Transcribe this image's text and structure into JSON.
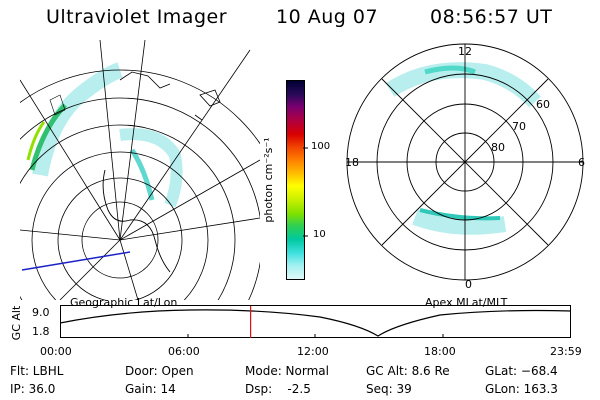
{
  "header": {
    "instrument": "Ultraviolet Imager",
    "date": "10 Aug 07",
    "time": "08:56:57 UT"
  },
  "left_panel": {
    "label": "Geographic Lat/Lon"
  },
  "right_panel": {
    "label": "Apex MLat/MLT",
    "lat_labels": [
      "60",
      "70",
      "80"
    ],
    "mlt_labels": {
      "top": "12",
      "bottom": "0",
      "left": "18",
      "right": "6"
    }
  },
  "colorbar": {
    "unit": "photon cm⁻²s⁻¹",
    "tick_100": "100",
    "tick_10": "10",
    "colors": [
      "#000033",
      "#2a0a5a",
      "#7a0070",
      "#b00040",
      "#d80000",
      "#f04000",
      "#ff8000",
      "#ffc000",
      "#ffff00",
      "#c8f000",
      "#80e000",
      "#30d050",
      "#00c8a0",
      "#40e0e0",
      "#a0f0f0",
      "#e0f8f8"
    ]
  },
  "alt_plot": {
    "ylabel": "GC Alt",
    "ymax": "9.0",
    "ymin": "1.8",
    "xticks": [
      "00:00",
      "06:00",
      "12:00",
      "18:00",
      "23:59"
    ],
    "marker_time_fraction": 0.373
  },
  "footer": {
    "flt": "Flt: LBHL",
    "ip": "IP: 36.0",
    "door": "Door: Open",
    "gain": "Gain: 14",
    "mode": "Mode: Normal",
    "dsp": "Dsp:    -2.5",
    "gcalt": "GC Alt: 8.6 Re",
    "seq": "Seq: 39",
    "glat": "GLat: −68.4",
    "glon": "GLon: 163.3"
  }
}
